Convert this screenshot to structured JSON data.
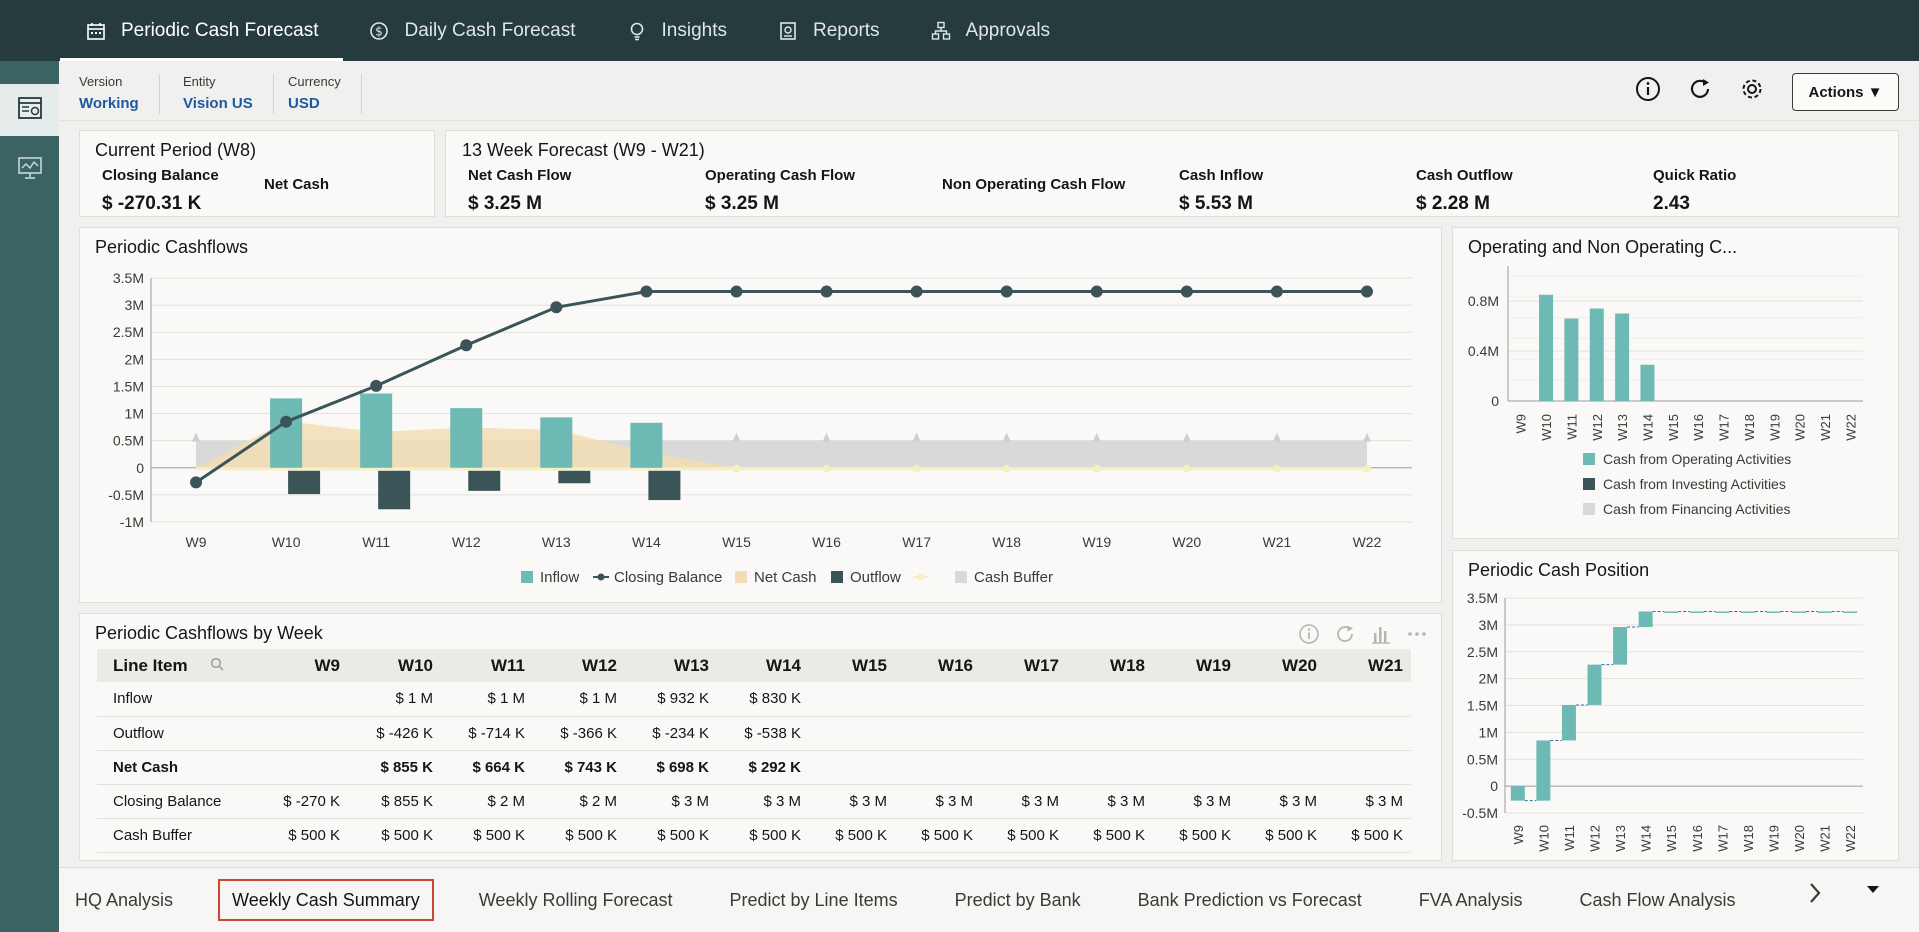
{
  "top_nav": {
    "tabs": [
      {
        "label": "Periodic Cash Forecast",
        "icon": "calendar-icon",
        "active": true
      },
      {
        "label": "Daily Cash Forecast",
        "icon": "dollar-circle-icon",
        "active": false
      },
      {
        "label": "Insights",
        "icon": "lightbulb-icon",
        "active": false
      },
      {
        "label": "Reports",
        "icon": "report-icon",
        "active": false
      },
      {
        "label": "Approvals",
        "icon": "hierarchy-icon",
        "active": false
      }
    ]
  },
  "pov": {
    "version": {
      "label": "Version",
      "value": "Working"
    },
    "entity": {
      "label": "Entity",
      "value": "Vision US"
    },
    "currency": {
      "label": "Currency",
      "value": "USD"
    }
  },
  "header_buttons": {
    "actions_label": "Actions ▼"
  },
  "current_period": {
    "title": "Current Period (W8)",
    "closing_balance": {
      "label": "Closing Balance",
      "value": "$ -270.31 K"
    },
    "net_cash": {
      "label": "Net Cash",
      "value": ""
    }
  },
  "forecast13": {
    "title": "13 Week Forecast (W9 - W21)",
    "kpis": [
      {
        "label": "Net Cash Flow",
        "value": "$ 3.25 M"
      },
      {
        "label": "Operating Cash Flow",
        "value": "$ 3.25 M"
      },
      {
        "label": "Non Operating Cash Flow",
        "value": ""
      },
      {
        "label": "Cash Inflow",
        "value": "$ 5.53 M"
      },
      {
        "label": "Cash Outflow",
        "value": "$ 2.28 M"
      },
      {
        "label": "Quick Ratio",
        "value": "2.43"
      }
    ]
  },
  "periodic_cashflows": {
    "title": "Periodic Cashflows",
    "chart_data": {
      "type": "bar",
      "categories": [
        "W9",
        "W10",
        "W11",
        "W12",
        "W13",
        "W14",
        "W15",
        "W16",
        "W17",
        "W18",
        "W19",
        "W20",
        "W21",
        "W22"
      ],
      "y_ticks": [
        "3.5M",
        "3M",
        "2.5M",
        "2M",
        "1.5M",
        "1M",
        "0.5M",
        "0",
        "-0.5M",
        "-1M"
      ],
      "ylim": [
        -1,
        3.5
      ],
      "series": [
        {
          "name": "Inflow",
          "type": "bar",
          "color": "#6cbab3",
          "values": [
            0,
            1.28,
            1.37,
            1.1,
            0.93,
            0.83,
            0,
            0,
            0,
            0,
            0,
            0,
            0,
            0
          ]
        },
        {
          "name": "Closing Balance",
          "type": "line",
          "color": "#3a5458",
          "values": [
            -0.27,
            0.85,
            1.51,
            2.26,
            2.96,
            3.25,
            3.25,
            3.25,
            3.25,
            3.25,
            3.25,
            3.25,
            3.25,
            3.25
          ]
        },
        {
          "name": "Net Cash",
          "type": "area",
          "color": "#f2ddb3",
          "values": [
            0,
            0.86,
            0.66,
            0.74,
            0.7,
            0.29,
            0,
            0,
            0,
            0,
            0,
            0,
            0,
            0
          ]
        },
        {
          "name": "Outflow",
          "type": "bar",
          "color": "#3a5458",
          "values": [
            0,
            -0.43,
            -0.71,
            -0.37,
            -0.23,
            -0.54,
            0,
            0,
            0,
            0,
            0,
            0,
            0,
            0
          ]
        },
        {
          "name": "",
          "type": "line",
          "color": "#f7efc0",
          "values": [
            0,
            0,
            0,
            0,
            0,
            0,
            0,
            0,
            0,
            0,
            0,
            0,
            0,
            0
          ]
        },
        {
          "name": "Cash Buffer",
          "type": "area",
          "color": "#d9d9d9",
          "values": [
            0.5,
            0.5,
            0.5,
            0.5,
            0.5,
            0.5,
            0.5,
            0.5,
            0.5,
            0.5,
            0.5,
            0.5,
            0.5,
            0.5
          ]
        }
      ],
      "legend": "bottom"
    }
  },
  "op_nonop": {
    "title": "Operating and Non Operating C...",
    "chart_data": {
      "type": "bar",
      "categories": [
        "W9",
        "W10",
        "W11",
        "W12",
        "W13",
        "W14",
        "W15",
        "W16",
        "W17",
        "W18",
        "W19",
        "W20",
        "W21",
        "W22"
      ],
      "y_ticks": [
        "0.8M",
        "0.4M",
        "0"
      ],
      "ylim": [
        0,
        1.0
      ],
      "series": [
        {
          "name": "Cash from Operating Activities",
          "color": "#6cbab3",
          "values": [
            0,
            0.85,
            0.66,
            0.74,
            0.7,
            0.29,
            0,
            0,
            0,
            0,
            0,
            0,
            0,
            0
          ]
        },
        {
          "name": "Cash from Investing Activities",
          "color": "#3a5458",
          "values": [
            0,
            0,
            0,
            0,
            0,
            0,
            0,
            0,
            0,
            0,
            0,
            0,
            0,
            0
          ]
        },
        {
          "name": "Cash from Financing Activities",
          "color": "#d9d9d9",
          "values": [
            0,
            0,
            0,
            0,
            0,
            0,
            0,
            0,
            0,
            0,
            0,
            0,
            0,
            0
          ]
        }
      ],
      "legend": "bottom"
    }
  },
  "cash_position": {
    "title": "Periodic Cash Position",
    "chart_data": {
      "type": "bar",
      "subtype": "waterfall",
      "categories": [
        "W9",
        "W10",
        "W11",
        "W12",
        "W13",
        "W14",
        "W15",
        "W16",
        "W17",
        "W18",
        "W19",
        "W20",
        "W21",
        "W22"
      ],
      "y_ticks": [
        "3.5M",
        "3M",
        "2.5M",
        "2M",
        "1.5M",
        "1M",
        "0.5M",
        "0",
        "-0.5M"
      ],
      "ylim": [
        -0.5,
        3.5
      ],
      "start": [
        0,
        -0.27,
        0.85,
        1.51,
        2.26,
        2.96,
        3.25,
        3.25,
        3.25,
        3.25,
        3.25,
        3.25,
        3.25,
        3.25
      ],
      "end": [
        -0.27,
        0.85,
        1.51,
        2.26,
        2.96,
        3.25,
        3.25,
        3.25,
        3.25,
        3.25,
        3.25,
        3.25,
        3.25,
        3.25
      ],
      "color": "#6cbab3"
    }
  },
  "cashflows_by_week": {
    "title": "Periodic Cashflows by Week",
    "columns": [
      "Line Item",
      "W9",
      "W10",
      "W11",
      "W12",
      "W13",
      "W14",
      "W15",
      "W16",
      "W17",
      "W18",
      "W19",
      "W20",
      "W21"
    ],
    "rows": [
      {
        "label": "Inflow",
        "bold": false,
        "cells": [
          "",
          "$ 1 M",
          "$ 1 M",
          "$ 1 M",
          "$ 932 K",
          "$ 830 K",
          "",
          "",
          "",
          "",
          "",
          "",
          ""
        ]
      },
      {
        "label": "Outflow",
        "bold": false,
        "cells": [
          "",
          "$ -426 K",
          "$ -714 K",
          "$ -366 K",
          "$ -234 K",
          "$ -538 K",
          "",
          "",
          "",
          "",
          "",
          "",
          ""
        ]
      },
      {
        "label": "Net Cash",
        "bold": true,
        "cells": [
          "",
          "$ 855 K",
          "$ 664 K",
          "$ 743 K",
          "$ 698 K",
          "$ 292 K",
          "",
          "",
          "",
          "",
          "",
          "",
          ""
        ]
      },
      {
        "label": "Closing Balance",
        "bold": false,
        "cells": [
          "$ -270 K",
          "$ 855 K",
          "$ 2 M",
          "$ 2 M",
          "$ 3 M",
          "$ 3 M",
          "$ 3 M",
          "$ 3 M",
          "$ 3 M",
          "$ 3 M",
          "$ 3 M",
          "$ 3 M",
          "$ 3 M"
        ]
      },
      {
        "label": "Cash Buffer",
        "bold": false,
        "cells": [
          "$ 500 K",
          "$ 500 K",
          "$ 500 K",
          "$ 500 K",
          "$ 500 K",
          "$ 500 K",
          "$ 500 K",
          "$ 500 K",
          "$ 500 K",
          "$ 500 K",
          "$ 500 K",
          "$ 500 K",
          "$ 500 K"
        ]
      }
    ]
  },
  "bottom_tabs": {
    "tabs": [
      {
        "label": "HQ Analysis",
        "active": false
      },
      {
        "label": "Weekly Cash Summary",
        "active": true
      },
      {
        "label": "Weekly Rolling Forecast",
        "active": false
      },
      {
        "label": "Predict by Line Items",
        "active": false
      },
      {
        "label": "Predict by Bank",
        "active": false
      },
      {
        "label": "Bank Prediction vs Forecast",
        "active": false
      },
      {
        "label": "FVA Analysis",
        "active": false
      },
      {
        "label": "Cash Flow Analysis",
        "active": false
      }
    ]
  }
}
